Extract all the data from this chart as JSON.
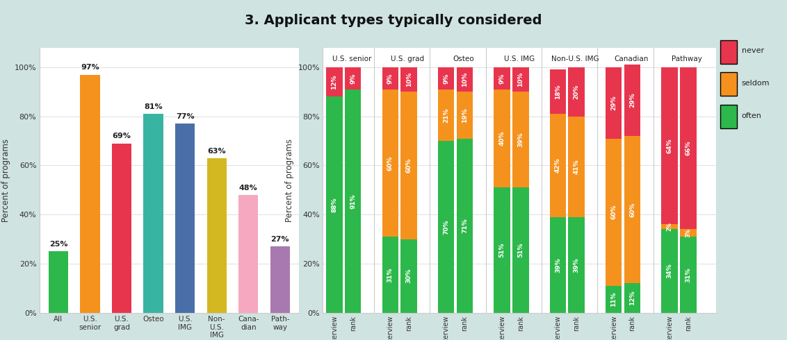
{
  "title": "3. Applicant types typically considered",
  "background_color": "#cfe3e0",
  "plot_bg": "#ffffff",
  "bar_chart": {
    "categories": [
      "All",
      "U.S.\nsenior",
      "U.S.\ngrad",
      "Osteo",
      "U.S.\nIMG",
      "Non-\nU.S.\nIMG",
      "Cana-\ndian",
      "Path-\nway"
    ],
    "values": [
      25,
      97,
      69,
      81,
      77,
      63,
      48,
      27
    ],
    "colors": [
      "#2db84b",
      "#f5921e",
      "#e8354e",
      "#38b5a2",
      "#4a6fa8",
      "#d4b822",
      "#f5a8c0",
      "#a878b0"
    ],
    "ylabel": "Percent of programs"
  },
  "stacked_chart": {
    "groups": [
      "U.S. senior",
      "U.S. grad",
      "Osteo",
      "U.S. IMG",
      "Non-U.S. IMG",
      "Canadian",
      "Pathway"
    ],
    "subgroups": [
      "interview",
      "rank"
    ],
    "often": [
      88,
      91,
      31,
      30,
      70,
      71,
      51,
      51,
      39,
      39,
      11,
      12,
      34,
      31
    ],
    "seldom": [
      0,
      0,
      60,
      60,
      21,
      19,
      40,
      39,
      42,
      41,
      60,
      60,
      2,
      3
    ],
    "never": [
      12,
      9,
      9,
      10,
      9,
      10,
      9,
      10,
      18,
      20,
      29,
      29,
      64,
      66
    ],
    "color_often": "#2db84b",
    "color_seldom": "#f5921e",
    "color_never": "#e8354e",
    "ylabel": "Percent of programs"
  }
}
